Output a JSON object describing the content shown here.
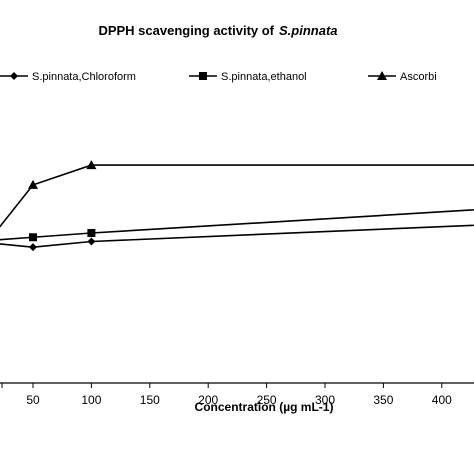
{
  "chart_data": {
    "type": "line",
    "title": "DPPH scavenging activity of",
    "title_species": "S.pinnata",
    "xlabel": "Concentration (µg  mL-1)",
    "ylabel": "",
    "x_ticks": [
      "50",
      "100",
      "150",
      "200",
      "250",
      "300",
      "350",
      "400"
    ],
    "xlim": [
      0,
      474
    ],
    "ylim": [
      0,
      100
    ],
    "legend_position": "top",
    "grid": false,
    "series": [
      {
        "name": "S.pinnata,Chloroform",
        "marker": "diamond",
        "x": [
          0,
          50,
          100,
          500
        ],
        "y": [
          50,
          48,
          50,
          57
        ]
      },
      {
        "name": "S.pinnata,ethanol",
        "marker": "square",
        "x": [
          0,
          50,
          100,
          500
        ],
        "y": [
          50,
          51.5,
          53,
          63
        ]
      },
      {
        "name": "Ascorbi",
        "marker": "triangle",
        "x": [
          0,
          50,
          100,
          500
        ],
        "y": [
          44,
          70,
          77,
          77
        ]
      }
    ]
  }
}
